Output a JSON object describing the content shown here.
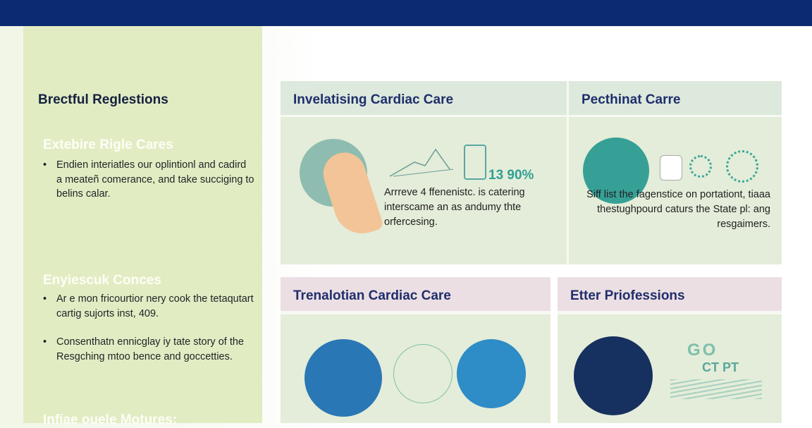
{
  "sidebar": {
    "title": "Brectful Reglestions",
    "sections": [
      {
        "heading": "Extebire Rigle Cares",
        "bullets": [
          "Endien interiatles our oplintionl and cadird a meateñ comerance, and take succiging to belins calar."
        ]
      },
      {
        "heading": "Enyiescuk Conces",
        "bullets": [
          "Ar e mon fricourtior nery cook the tetaqutart cartig sujorts inst, 409.",
          "Consenthatn ennicglay iy tate story of the Resgching mtoo bence and goccetties."
        ]
      },
      {
        "heading": "Infiae ouele Motures:"
      }
    ]
  },
  "cards": [
    {
      "title": "Invelatising Cardiac Care",
      "stat": "13 90%",
      "text": "Arrreve 4 ffenenistc. is catering interscame an as andumy thte orfercesing."
    },
    {
      "title": "Pecthinat Carre",
      "text": "Siff list the fagenstice on portationt, tiaaa thestughpourd caturs the State pl: ang resgaimers."
    },
    {
      "title": "Trenalotian Cardiac Care"
    },
    {
      "title": "Etter Priofessions",
      "logo_text": [
        "GO",
        "CT PT"
      ]
    }
  ],
  "colors": {
    "navy": "#0c2a6f",
    "lime": "#e2ecc3",
    "teal": "#3aa79a",
    "pink": "#ecdfe4"
  }
}
